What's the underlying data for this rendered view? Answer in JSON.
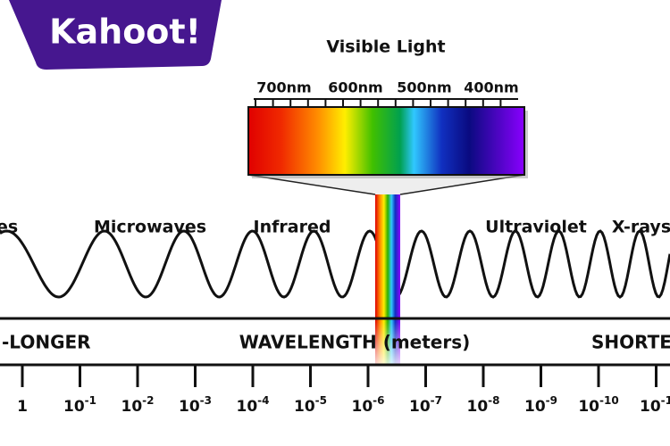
{
  "logo": {
    "text": "Kahoot!"
  },
  "visible_light": {
    "title": "Visible Light",
    "wavelengths": [
      "700nm",
      "600nm",
      "500nm",
      "400nm"
    ]
  },
  "regions": [
    "es",
    "Microwaves",
    "Infrared",
    "Ultraviolet",
    "X-rays"
  ],
  "band": {
    "left": "-LONGER",
    "center": "WAVELENGTH (meters)",
    "right": "SHORTE"
  },
  "scale": [
    {
      "base": "1"
    },
    {
      "base": "10",
      "exponent": "-1"
    },
    {
      "base": "10",
      "exponent": "-2"
    },
    {
      "base": "10",
      "exponent": "-3"
    },
    {
      "base": "10",
      "exponent": "-4"
    },
    {
      "base": "10",
      "exponent": "-5"
    },
    {
      "base": "10",
      "exponent": "-6"
    },
    {
      "base": "10",
      "exponent": "-7"
    },
    {
      "base": "10",
      "exponent": "-8"
    },
    {
      "base": "10",
      "exponent": "-9"
    },
    {
      "base": "10",
      "exponent": "-10"
    },
    {
      "base": "10",
      "exponent": "-1"
    }
  ]
}
